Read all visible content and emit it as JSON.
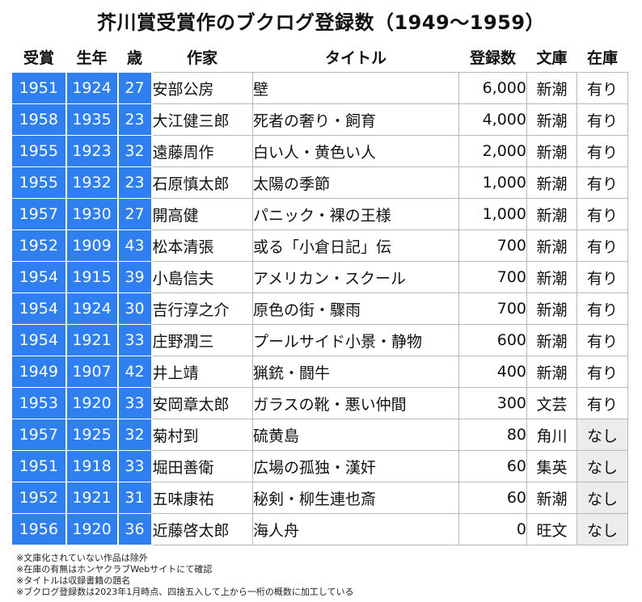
{
  "title": "芥川賞受賞作のブクログ登録数（1949〜1959）",
  "headers": [
    "受賞",
    "生年",
    "歳",
    "作家",
    "タイトル",
    "登録数",
    "文庫",
    "在庫"
  ],
  "rows": [
    {
      "award": "1951",
      "born": "1924",
      "age": "27",
      "author": "安部公房",
      "title": "壁",
      "count": "6,000",
      "bunko": "新潮",
      "stock": "有り"
    },
    {
      "award": "1958",
      "born": "1935",
      "age": "23",
      "author": "大江健三郎",
      "title": "死者の奢り・飼育",
      "count": "4,000",
      "bunko": "新潮",
      "stock": "有り"
    },
    {
      "award": "1955",
      "born": "1923",
      "age": "32",
      "author": "遠藤周作",
      "title": "白い人・黄色い人",
      "count": "2,000",
      "bunko": "新潮",
      "stock": "有り"
    },
    {
      "award": "1955",
      "born": "1932",
      "age": "23",
      "author": "石原慎太郎",
      "title": "太陽の季節",
      "count": "1,000",
      "bunko": "新潮",
      "stock": "有り"
    },
    {
      "award": "1957",
      "born": "1930",
      "age": "27",
      "author": "開高健",
      "title": "パニック・裸の王様",
      "count": "1,000",
      "bunko": "新潮",
      "stock": "有り"
    },
    {
      "award": "1952",
      "born": "1909",
      "age": "43",
      "author": "松本清張",
      "title": "或る「小倉日記」伝",
      "count": "700",
      "bunko": "新潮",
      "stock": "有り"
    },
    {
      "award": "1954",
      "born": "1915",
      "age": "39",
      "author": "小島信夫",
      "title": "アメリカン・スクール",
      "count": "700",
      "bunko": "新潮",
      "stock": "有り"
    },
    {
      "award": "1954",
      "born": "1924",
      "age": "30",
      "author": "吉行淳之介",
      "title": "原色の街・驟雨",
      "count": "700",
      "bunko": "新潮",
      "stock": "有り"
    },
    {
      "award": "1954",
      "born": "1921",
      "age": "33",
      "author": "庄野潤三",
      "title": "プールサイド小景・静物",
      "count": "600",
      "bunko": "新潮",
      "stock": "有り"
    },
    {
      "award": "1949",
      "born": "1907",
      "age": "42",
      "author": "井上靖",
      "title": "猟銃・闘牛",
      "count": "400",
      "bunko": "新潮",
      "stock": "有り"
    },
    {
      "award": "1953",
      "born": "1920",
      "age": "33",
      "author": "安岡章太郎",
      "title": "ガラスの靴・悪い仲間",
      "count": "300",
      "bunko": "文芸",
      "stock": "有り"
    },
    {
      "award": "1957",
      "born": "1925",
      "age": "32",
      "author": "菊村到",
      "title": "硫黄島",
      "count": "80",
      "bunko": "角川",
      "stock": "なし"
    },
    {
      "award": "1951",
      "born": "1918",
      "age": "33",
      "author": "堀田善衛",
      "title": "広場の孤独・漢奸",
      "count": "60",
      "bunko": "集英",
      "stock": "なし"
    },
    {
      "award": "1952",
      "born": "1921",
      "age": "31",
      "author": "五味康祐",
      "title": "秘剣・柳生連也斎",
      "count": "60",
      "bunko": "新潮",
      "stock": "なし"
    },
    {
      "award": "1956",
      "born": "1920",
      "age": "36",
      "author": "近藤啓太郎",
      "title": "海人舟",
      "count": "0",
      "bunko": "旺文",
      "stock": "なし"
    }
  ],
  "notes": [
    "※文庫化されていない作品は除外",
    "※在庫の有無はホンヤクラブWebサイトにて確認",
    "※タイトルは収録書籍の題名",
    "※ブクログ登録数は2023年1月時点、四捨五入して上から一桁の概数に加工している"
  ],
  "colors": {
    "accent": "#2f7ff0",
    "none_bg": "#ececec"
  }
}
